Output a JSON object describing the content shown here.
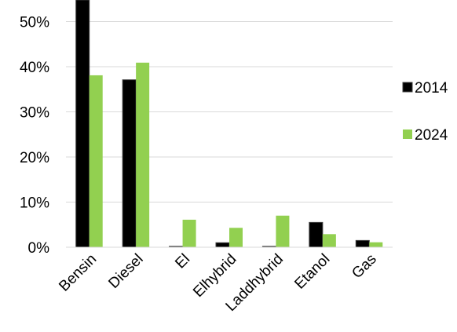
{
  "chart_data": {
    "type": "bar",
    "categories": [
      "Bensin",
      "Diesel",
      "El",
      "Elhybrid",
      "Laddhybrid",
      "Etanol",
      "Gas"
    ],
    "series": [
      {
        "name": "2014",
        "values": [
          54.8,
          37.1,
          0.2,
          1.0,
          0.2,
          5.5,
          1.5
        ],
        "color": "#000000"
      },
      {
        "name": "2024",
        "values": [
          38.1,
          40.9,
          6.1,
          4.3,
          7.0,
          2.9,
          1.1
        ],
        "color": "#92d050"
      }
    ],
    "y_ticks": [
      "0%",
      "10%",
      "20%",
      "30%",
      "40%",
      "50%"
    ],
    "y_tick_values": [
      0,
      10,
      20,
      30,
      40,
      50
    ],
    "ylim": [
      0,
      55
    ],
    "grid": true,
    "legend": "right"
  }
}
